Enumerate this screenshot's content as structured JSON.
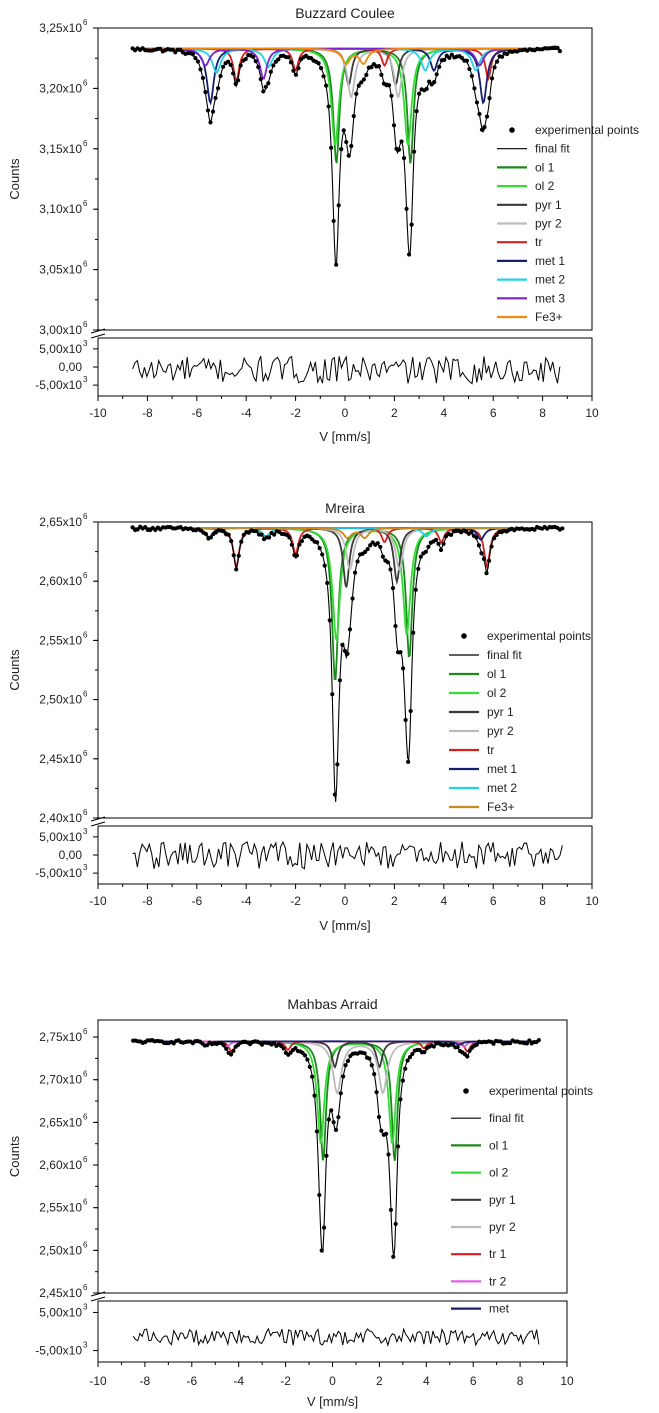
{
  "chart_data": [
    {
      "type": "line",
      "title": "Buzzard Coulee",
      "xlabel": "V [mm/s]",
      "ylabel": "Counts",
      "xlim": [
        -10,
        10
      ],
      "x_ticks": [
        "-10",
        "-8",
        "-6",
        "-4",
        "-2",
        "0",
        "2",
        "4",
        "6",
        "8",
        "10"
      ],
      "main_ylim": [
        3.0,
        3.25
      ],
      "main_y_unit_exp": 6,
      "main_y_ticks": [
        {
          "value": 3.25,
          "mantissa": "3,25x10",
          "exp": "6"
        },
        {
          "value": 3.2,
          "mantissa": "3,20x10",
          "exp": "6"
        },
        {
          "value": 3.15,
          "mantissa": "3,15x10",
          "exp": "6"
        },
        {
          "value": 3.1,
          "mantissa": "3,10x10",
          "exp": "6"
        },
        {
          "value": 3.05,
          "mantissa": "3,05x10",
          "exp": "6"
        },
        {
          "value": 3.0,
          "mantissa": "3,00x10",
          "exp": "6"
        }
      ],
      "residual_ylim": [
        -8000,
        8000
      ],
      "residual_y_ticks": [
        {
          "value": 5000,
          "mantissa": "5,00x10",
          "exp": "3"
        },
        {
          "value": 0,
          "mantissa": "0,00",
          "exp": ""
        },
        {
          "value": -5000,
          "mantissa": "-5,00x10",
          "exp": "3"
        }
      ],
      "baseline": 3.233,
      "legend": {
        "position": "right",
        "entries": [
          {
            "name": "experimental points",
            "kind": "dot"
          },
          {
            "name": "final fit",
            "kind": "line"
          },
          {
            "name": "ol 1",
            "kind": "line"
          },
          {
            "name": "ol 2",
            "kind": "line"
          },
          {
            "name": "pyr 1",
            "kind": "line"
          },
          {
            "name": "pyr 2",
            "kind": "line"
          },
          {
            "name": "tr",
            "kind": "line"
          },
          {
            "name": "met 1",
            "kind": "line"
          },
          {
            "name": "met 2",
            "kind": "line"
          },
          {
            "name": "met 3",
            "kind": "line"
          },
          {
            "name": "Fe3+",
            "kind": "line"
          }
        ]
      },
      "colors": {
        "ol 1": "#1a8a1a",
        "ol 2": "#33dd33",
        "pyr 1": "#3a3a3a",
        "pyr 2": "#bbbbbb",
        "tr": "#d42020",
        "met 1": "#14206e",
        "met 2": "#22d3e6",
        "met 3": "#7a22cc",
        "Fe3+": "#f08a10",
        "final fit": "#000000",
        "experimental points": "#000000"
      },
      "components": [
        {
          "name": "ol 1",
          "peaks": [
            [
              -0.35,
              0.095,
              0.15
            ],
            [
              2.65,
              0.095,
              0.15
            ]
          ]
        },
        {
          "name": "ol 2",
          "peaks": [
            [
              -0.4,
              0.08,
              0.18
            ],
            [
              2.55,
              0.08,
              0.18
            ]
          ]
        },
        {
          "name": "pyr 1",
          "peaks": [
            [
              0.15,
              0.03,
              0.15
            ],
            [
              2.05,
              0.03,
              0.15
            ]
          ]
        },
        {
          "name": "pyr 2",
          "peaks": [
            [
              0.25,
              0.04,
              0.18
            ],
            [
              2.15,
              0.04,
              0.18
            ]
          ]
        },
        {
          "name": "tr",
          "peaks": [
            [
              -4.4,
              0.027,
              0.14
            ],
            [
              -2.0,
              0.018,
              0.14
            ],
            [
              1.6,
              0.014,
              0.14
            ],
            [
              5.8,
              0.025,
              0.14
            ]
          ]
        },
        {
          "name": "met 1",
          "peaks": [
            [
              -5.45,
              0.045,
              0.17
            ],
            [
              3.6,
              0.018,
              0.17
            ],
            [
              5.6,
              0.045,
              0.17
            ]
          ]
        },
        {
          "name": "met 2",
          "peaks": [
            [
              -5.2,
              0.02,
              0.2
            ],
            [
              -3.1,
              0.015,
              0.2
            ],
            [
              3.25,
              0.018,
              0.2
            ],
            [
              5.3,
              0.018,
              0.2
            ]
          ]
        },
        {
          "name": "met 3",
          "peaks": [
            [
              -5.65,
              0.014,
              0.2
            ],
            [
              -3.3,
              0.025,
              0.17
            ],
            [
              5.45,
              0.014,
              0.2
            ]
          ]
        },
        {
          "name": "Fe3+",
          "peaks": [
            [
              0.05,
              0.012,
              0.2
            ],
            [
              0.75,
              0.012,
              0.2
            ]
          ]
        }
      ],
      "points_x_range": [
        -8.6,
        8.7
      ]
    },
    {
      "type": "line",
      "title": "Mreira",
      "xlabel": "V [mm/s]",
      "ylabel": "Counts",
      "xlim": [
        -10,
        10
      ],
      "x_ticks": [
        "-10",
        "-8",
        "-6",
        "-4",
        "-2",
        "0",
        "2",
        "4",
        "6",
        "8",
        "10"
      ],
      "main_ylim": [
        2.4,
        2.65
      ],
      "main_y_unit_exp": 6,
      "main_y_ticks": [
        {
          "value": 2.65,
          "mantissa": "2,65x10",
          "exp": "6"
        },
        {
          "value": 2.6,
          "mantissa": "2,60x10",
          "exp": "6"
        },
        {
          "value": 2.55,
          "mantissa": "2,55x10",
          "exp": "6"
        },
        {
          "value": 2.5,
          "mantissa": "2,50x10",
          "exp": "6"
        },
        {
          "value": 2.45,
          "mantissa": "2,45x10",
          "exp": "6"
        },
        {
          "value": 2.4,
          "mantissa": "2,40x10",
          "exp": "6"
        }
      ],
      "residual_ylim": [
        -8000,
        8000
      ],
      "residual_y_ticks": [
        {
          "value": 5000,
          "mantissa": "5,00x10",
          "exp": "3"
        },
        {
          "value": 0,
          "mantissa": "0,00",
          "exp": ""
        },
        {
          "value": -5000,
          "mantissa": "-5,00x10",
          "exp": "3"
        }
      ],
      "baseline": 2.645,
      "legend": {
        "position": "right",
        "entries": [
          {
            "name": "experimental points",
            "kind": "dot"
          },
          {
            "name": "final fit",
            "kind": "line"
          },
          {
            "name": "ol 1",
            "kind": "line"
          },
          {
            "name": "ol 2",
            "kind": "line"
          },
          {
            "name": "pyr 1",
            "kind": "line"
          },
          {
            "name": "pyr 2",
            "kind": "line"
          },
          {
            "name": "tr",
            "kind": "line"
          },
          {
            "name": "met 1",
            "kind": "line"
          },
          {
            "name": "met 2",
            "kind": "line"
          },
          {
            "name": "Fe3+",
            "kind": "line"
          }
        ]
      },
      "colors": {
        "ol 1": "#1a8a1a",
        "ol 2": "#33dd33",
        "pyr 1": "#3a3a3a",
        "pyr 2": "#bbbbbb",
        "tr": "#d42020",
        "met 1": "#14206e",
        "met 2": "#22d3e6",
        "Fe3+": "#c88a20",
        "final fit": "#000000",
        "experimental points": "#000000"
      },
      "components": [
        {
          "name": "ol 1",
          "peaks": [
            [
              -0.4,
              0.13,
              0.15
            ],
            [
              2.6,
              0.11,
              0.15
            ]
          ]
        },
        {
          "name": "ol 2",
          "peaks": [
            [
              -0.35,
              0.095,
              0.18
            ],
            [
              2.5,
              0.09,
              0.18
            ]
          ]
        },
        {
          "name": "pyr 1",
          "peaks": [
            [
              0.05,
              0.05,
              0.15
            ],
            [
              2.1,
              0.045,
              0.15
            ]
          ]
        },
        {
          "name": "pyr 2",
          "peaks": [
            [
              0.2,
              0.035,
              0.18
            ],
            [
              2.2,
              0.035,
              0.18
            ]
          ]
        },
        {
          "name": "tr",
          "peaks": [
            [
              -4.4,
              0.033,
              0.14
            ],
            [
              -2.0,
              0.022,
              0.14
            ],
            [
              1.6,
              0.012,
              0.14
            ],
            [
              3.9,
              0.012,
              0.14
            ],
            [
              5.75,
              0.033,
              0.14
            ]
          ]
        },
        {
          "name": "met 1",
          "peaks": [
            [
              -5.5,
              0.008,
              0.17
            ],
            [
              5.5,
              0.01,
              0.17
            ]
          ]
        },
        {
          "name": "met 2",
          "peaks": [
            [
              -3.2,
              0.007,
              0.2
            ],
            [
              3.3,
              0.007,
              0.2
            ]
          ]
        },
        {
          "name": "Fe3+",
          "peaks": [
            [
              0.1,
              0.008,
              0.2
            ],
            [
              0.8,
              0.008,
              0.2
            ]
          ]
        }
      ],
      "points_x_range": [
        -8.6,
        8.8
      ]
    },
    {
      "type": "line",
      "title": "Mahbas Arraid",
      "xlabel": "V [mm/s]",
      "ylabel": "Counts",
      "xlim": [
        -10,
        10
      ],
      "x_ticks": [
        "-10",
        "-8",
        "-6",
        "-4",
        "-2",
        "0",
        "2",
        "4",
        "6",
        "8",
        "10"
      ],
      "main_ylim": [
        2.45,
        2.77
      ],
      "main_y_unit_exp": 6,
      "main_y_ticks": [
        {
          "value": 2.75,
          "mantissa": "2,75x10",
          "exp": "6"
        },
        {
          "value": 2.7,
          "mantissa": "2,70x10",
          "exp": "6"
        },
        {
          "value": 2.65,
          "mantissa": "2,65x10",
          "exp": "6"
        },
        {
          "value": 2.6,
          "mantissa": "2,60x10",
          "exp": "6"
        },
        {
          "value": 2.55,
          "mantissa": "2,55x10",
          "exp": "6"
        },
        {
          "value": 2.5,
          "mantissa": "2,50x10",
          "exp": "6"
        },
        {
          "value": 2.45,
          "mantissa": "2,45x10",
          "exp": "6"
        }
      ],
      "residual_ylim": [
        -8000,
        8000
      ],
      "residual_y_ticks": [
        {
          "value": 5000,
          "mantissa": "5,00x10",
          "exp": "3"
        },
        {
          "value": -5000,
          "mantissa": "-5,00x10",
          "exp": "3"
        }
      ],
      "baseline": 2.745,
      "legend": {
        "position": "right",
        "entries": [
          {
            "name": "experimental points",
            "kind": "dot"
          },
          {
            "name": "final fit",
            "kind": "line"
          },
          {
            "name": "ol 1",
            "kind": "line"
          },
          {
            "name": "ol 2",
            "kind": "line"
          },
          {
            "name": "pyr 1",
            "kind": "line"
          },
          {
            "name": "pyr 2",
            "kind": "line"
          },
          {
            "name": "tr 1",
            "kind": "line"
          },
          {
            "name": "tr 2",
            "kind": "line"
          },
          {
            "name": "met",
            "kind": "line"
          }
        ]
      },
      "colors": {
        "ol 1": "#1a8a1a",
        "ol 2": "#33dd33",
        "pyr 1": "#3a3a3a",
        "pyr 2": "#bbbbbb",
        "tr 1": "#d42020",
        "tr 2": "#e060e0",
        "met": "#14206e",
        "final fit": "#000000",
        "experimental points": "#000000"
      },
      "components": [
        {
          "name": "ol 1",
          "peaks": [
            [
              -0.4,
              0.14,
              0.15
            ],
            [
              2.65,
              0.14,
              0.15
            ]
          ]
        },
        {
          "name": "ol 2",
          "peaks": [
            [
              -0.5,
              0.12,
              0.18
            ],
            [
              2.55,
              0.12,
              0.18
            ]
          ]
        },
        {
          "name": "pyr 1",
          "peaks": [
            [
              0.1,
              0.03,
              0.15
            ],
            [
              2.0,
              0.03,
              0.15
            ]
          ]
        },
        {
          "name": "pyr 2",
          "peaks": [
            [
              0.2,
              0.06,
              0.22
            ],
            [
              2.15,
              0.06,
              0.22
            ]
          ]
        },
        {
          "name": "tr 1",
          "peaks": [
            [
              -4.3,
              0.012,
              0.14
            ],
            [
              -1.9,
              0.01,
              0.14
            ],
            [
              3.9,
              0.008,
              0.14
            ],
            [
              5.75,
              0.012,
              0.14
            ]
          ]
        },
        {
          "name": "tr 2",
          "peaks": [
            [
              -4.5,
              0.006,
              0.16
            ],
            [
              5.6,
              0.006,
              0.16
            ]
          ]
        },
        {
          "name": "met",
          "peaks": [
            [
              -5.4,
              0.004,
              0.17
            ],
            [
              5.4,
              0.004,
              0.17
            ]
          ]
        }
      ],
      "points_x_range": [
        -8.5,
        8.8
      ]
    }
  ]
}
